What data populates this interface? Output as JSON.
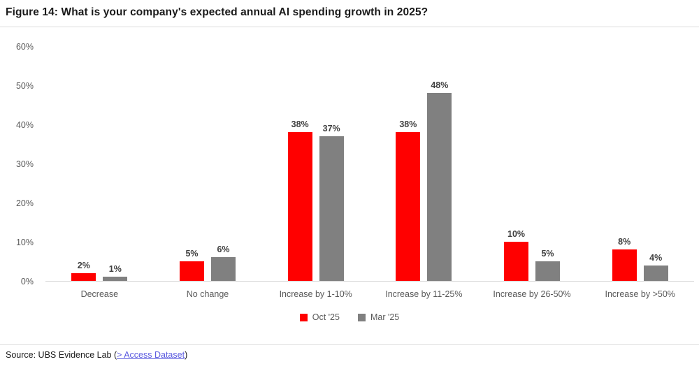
{
  "header": {
    "title": "Figure 14: What is your company's expected annual AI spending growth in 2025?"
  },
  "chart_data": {
    "type": "bar",
    "title": "Figure 14: What is your company's expected annual AI spending growth in 2025?",
    "categories": [
      "Decrease",
      "No change",
      "Increase by 1-10%",
      "Increase by 11-25%",
      "Increase by 26-50%",
      "Increase by >50%"
    ],
    "series": [
      {
        "name": "Oct '25",
        "color": "#ff0000",
        "values": [
          2,
          5,
          38,
          38,
          10,
          8
        ]
      },
      {
        "name": "Mar '25",
        "color": "#808080",
        "values": [
          1,
          6,
          37,
          48,
          5,
          4
        ]
      }
    ],
    "data_label_suffix": "%",
    "ylabel": "",
    "xlabel": "",
    "ylim": [
      0,
      60
    ],
    "ytick_step": 10,
    "ytick_suffix": "%",
    "grid": false,
    "legend_position": "bottom",
    "data_labels": true
  },
  "footer": {
    "source_prefix": "Source: UBS Evidence Lab (",
    "link_label": "> Access Dataset",
    "source_suffix": ")"
  },
  "colors": {
    "series_oct": "#ff0000",
    "series_mar": "#808080",
    "axis_text": "#595959",
    "data_label_text": "#404040",
    "title_text": "#1a1a1a",
    "divider": "#dcdcdc",
    "link": "#5c5ce0"
  }
}
